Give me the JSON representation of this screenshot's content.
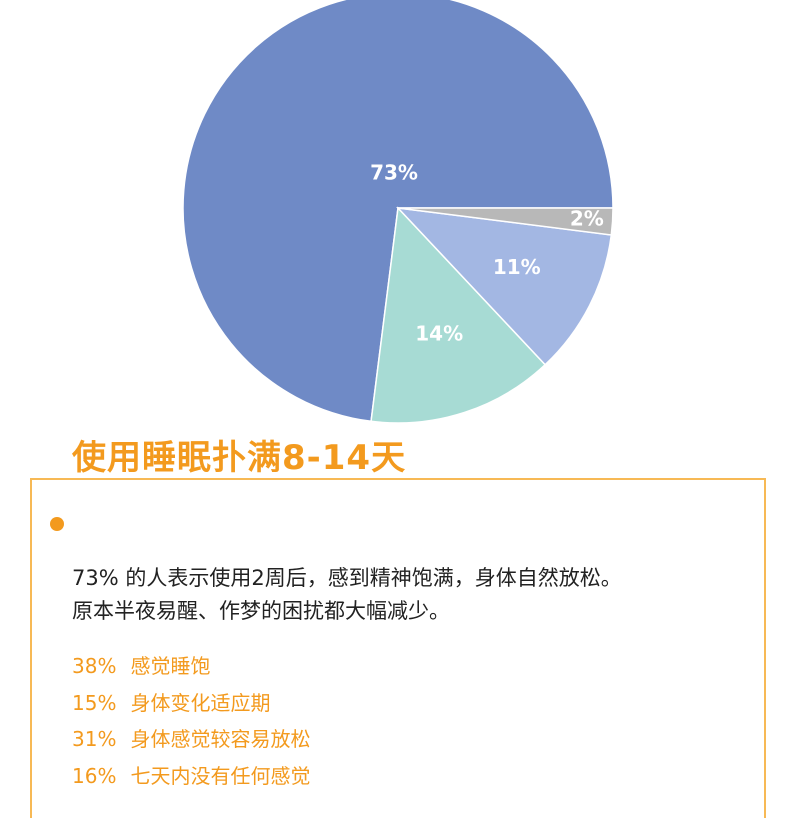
{
  "chart_data": {
    "type": "pie",
    "categories": [
      "73%",
      "14%",
      "11%",
      "2%"
    ],
    "values": [
      73,
      14,
      11,
      2
    ],
    "labels": [
      "73%",
      "14%",
      "11%",
      "2%"
    ],
    "colors": [
      "#6f8ac6",
      "#a7dbd4",
      "#a3b7e3",
      "#b8b8b8"
    ],
    "start_angle_deg": 0,
    "direction": "clockwise"
  },
  "heading": "使用睡眠扑满8-14天",
  "summary": {
    "line1": "73%  的人表示使用2周后，感到精神饱满，身体自然放松。",
    "line2": "原本半夜易醒、作梦的困扰都大幅减少。"
  },
  "stats": [
    {
      "pct": "38%",
      "text": "感觉睡饱"
    },
    {
      "pct": "15%",
      "text": "身体变化适应期"
    },
    {
      "pct": "31%",
      "text": "身体感觉较容易放松"
    },
    {
      "pct": "16%",
      "text": "七天内没有任何感觉"
    }
  ],
  "colors": {
    "accent": "#f39a1e",
    "box_border": "#f7b955",
    "stat_text": "#f39a1e",
    "summary_text": "#222222"
  }
}
